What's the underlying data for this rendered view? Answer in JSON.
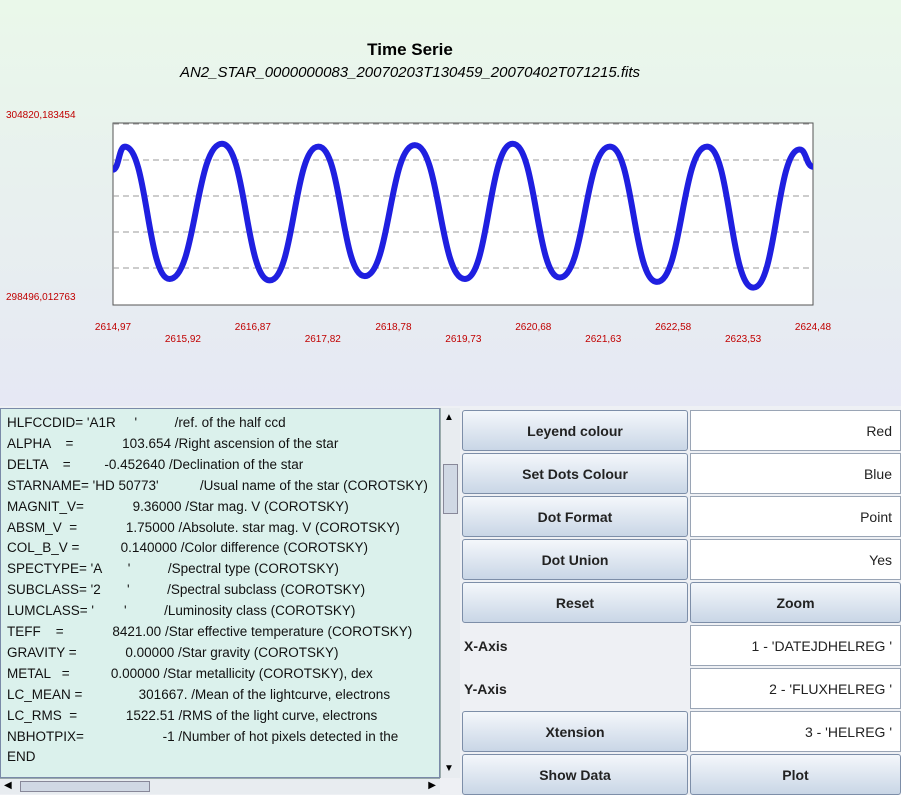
{
  "plot": {
    "type": "line",
    "title": "Time Serie",
    "subtitle": "AN2_STAR_0000000083_20070203T130459_20070402T071215.fits",
    "x": [
      2614.97,
      2615.13,
      2615.74,
      2616.45,
      2617.1,
      2617.76,
      2618.39,
      2619.07,
      2619.75,
      2620.4,
      2621.04,
      2621.72,
      2622.36,
      2623.04,
      2623.67,
      2624.3,
      2624.48
    ],
    "series": [
      {
        "color": "#1f1fe0",
        "values": [
          303200,
          304000,
          299400,
          304100,
          299350,
          304000,
          299500,
          304050,
          299400,
          304100,
          299450,
          304000,
          299300,
          304000,
          299100,
          303900,
          303300
        ]
      }
    ],
    "xlim": [
      2614.97,
      2624.48
    ],
    "ylim": [
      298496.012763,
      304820.183454
    ],
    "xticks": [
      {
        "value": 2614.97,
        "label": "2614,97"
      },
      {
        "value": 2615.92,
        "label": "2615,92"
      },
      {
        "value": 2616.87,
        "label": "2616,87"
      },
      {
        "value": 2617.82,
        "label": "2617,82"
      },
      {
        "value": 2618.78,
        "label": "2618,78"
      },
      {
        "value": 2619.73,
        "label": "2619,73"
      },
      {
        "value": 2620.68,
        "label": "2620,68"
      },
      {
        "value": 2621.63,
        "label": "2621,63"
      },
      {
        "value": 2622.58,
        "label": "2622,58"
      },
      {
        "value": 2623.53,
        "label": "2623,53"
      },
      {
        "value": 2624.48,
        "label": "2624,48"
      }
    ],
    "yticks": [
      {
        "value": 304820.183454,
        "label": "304820,183454"
      },
      {
        "value": 298496.012763,
        "label": "298496,012763"
      }
    ]
  },
  "header_text": {
    "lines": [
      "HLFCCDID= 'A1R     '          /ref. of the half ccd",
      "ALPHA    =             103.654 /Right ascension of the star",
      "DELTA    =         -0.452640 /Declination of the star",
      "STARNAME= 'HD 50773'           /Usual name of the star (COROTSKY)",
      "MAGNIT_V=             9.36000 /Star mag. V (COROTSKY)",
      "ABSM_V  =             1.75000 /Absolute. star mag. V (COROTSKY)",
      "COL_B_V =           0.140000 /Color difference (COROTSKY)",
      "SPECTYPE= 'A       '          /Spectral type (COROTSKY)",
      "SUBCLASS= '2       '          /Spectral subclass (COROTSKY)",
      "LUMCLASS= '        '          /Luminosity class (COROTSKY)",
      "TEFF    =             8421.00 /Star effective temperature (COROTSKY)",
      "GRAVITY =             0.00000 /Star gravity (COROTSKY)",
      "METAL   =           0.00000 /Star metallicity (COROTSKY), dex",
      "LC_MEAN =               301667. /Mean of the lightcurve, electrons",
      "LC_RMS  =             1522.51 /RMS of the light curve, electrons",
      "NBHOTPIX=                     -1 /Number of hot pixels detected in the",
      "END"
    ]
  },
  "controls": {
    "rows": [
      [
        "Leyend colour",
        "Red"
      ],
      [
        "Set Dots Colour",
        "Blue"
      ],
      [
        "Dot Format",
        "Point"
      ],
      [
        "Dot Union",
        "Yes"
      ],
      [
        "Reset",
        "Zoom"
      ],
      [
        "X-Axis",
        "1 - 'DATEJDHELREG '"
      ],
      [
        "Y-Axis",
        "2 - 'FLUXHELREG '"
      ],
      [
        "Xtension",
        "3 - 'HELREG  '"
      ],
      [
        "Show Data",
        "Plot"
      ]
    ]
  }
}
